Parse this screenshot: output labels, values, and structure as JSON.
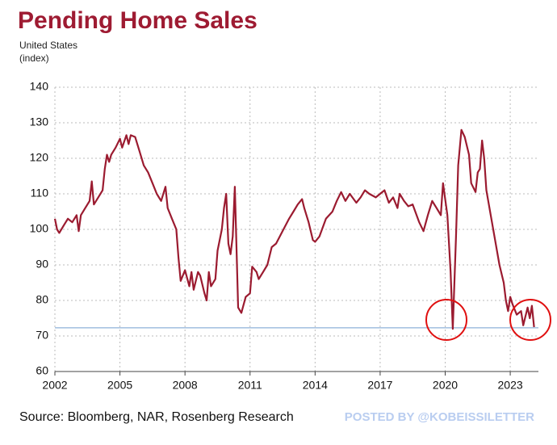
{
  "chart_data": {
    "type": "line",
    "title": "Pending Home Sales",
    "subtitle": "United States",
    "y_label": "(index)",
    "source": "Source: Bloomberg, NAR, Rosenberg Research",
    "watermark": "POSTED BY @KOBEISSILETTER",
    "xlim": [
      2002,
      2024.3
    ],
    "ylim": [
      60,
      140
    ],
    "xticks": [
      2002,
      2005,
      2008,
      2011,
      2014,
      2017,
      2020,
      2023
    ],
    "yticks": [
      60,
      70,
      80,
      90,
      100,
      110,
      120,
      130,
      140
    ],
    "grid": true,
    "reference_line": {
      "value": 72.3,
      "color": "#8eb0d8"
    },
    "series": [
      {
        "name": "Pending Home Sales",
        "color": "#9b1b30",
        "x": [
          2002.0,
          2002.1,
          2002.2,
          2002.4,
          2002.6,
          2002.8,
          2003.0,
          2003.1,
          2003.2,
          2003.4,
          2003.5,
          2003.6,
          2003.7,
          2003.8,
          2004.0,
          2004.2,
          2004.3,
          2004.4,
          2004.5,
          2004.6,
          2004.8,
          2005.0,
          2005.1,
          2005.3,
          2005.4,
          2005.5,
          2005.7,
          2005.9,
          2006.1,
          2006.3,
          2006.5,
          2006.7,
          2006.9,
          2007.1,
          2007.2,
          2007.4,
          2007.6,
          2007.7,
          2007.8,
          2008.0,
          2008.2,
          2008.3,
          2008.4,
          2008.6,
          2008.7,
          2008.9,
          2009.0,
          2009.1,
          2009.2,
          2009.4,
          2009.5,
          2009.7,
          2009.8,
          2009.9,
          2010.0,
          2010.1,
          2010.2,
          2010.3,
          2010.45,
          2010.6,
          2010.8,
          2011.0,
          2011.1,
          2011.3,
          2011.4,
          2011.6,
          2011.8,
          2012.0,
          2012.2,
          2012.5,
          2012.8,
          2013.0,
          2013.2,
          2013.4,
          2013.5,
          2013.7,
          2013.9,
          2014.0,
          2014.2,
          2014.5,
          2014.8,
          2015.0,
          2015.2,
          2015.4,
          2015.6,
          2015.9,
          2016.1,
          2016.3,
          2016.5,
          2016.8,
          2017.0,
          2017.2,
          2017.4,
          2017.6,
          2017.8,
          2017.9,
          2018.1,
          2018.3,
          2018.5,
          2018.8,
          2019.0,
          2019.2,
          2019.4,
          2019.6,
          2019.8,
          2019.9,
          2020.1,
          2020.25,
          2020.35,
          2020.5,
          2020.6,
          2020.75,
          2020.9,
          2021.1,
          2021.2,
          2021.4,
          2021.5,
          2021.6,
          2021.7,
          2021.8,
          2021.9,
          2022.1,
          2022.3,
          2022.5,
          2022.7,
          2022.8,
          2022.9,
          2023.0,
          2023.1,
          2023.3,
          2023.5,
          2023.6,
          2023.8,
          2023.9,
          2024.0,
          2024.1
        ],
        "values": [
          103,
          100,
          99,
          101,
          103,
          102,
          104,
          99.5,
          104,
          106,
          107,
          108,
          113.5,
          107,
          109,
          111,
          117,
          121,
          119,
          121,
          123,
          125.5,
          123,
          126.5,
          124,
          126.5,
          126,
          122,
          118,
          116,
          113,
          110,
          108,
          112,
          106,
          103,
          100,
          92,
          85.5,
          88.5,
          84,
          88,
          83,
          88,
          87,
          82,
          80,
          88,
          84,
          86,
          94,
          100,
          106,
          110,
          96,
          93,
          98,
          112,
          78,
          76.5,
          81,
          82,
          89.5,
          88,
          86,
          88,
          90,
          95,
          96,
          99.5,
          103,
          105,
          107,
          108.5,
          106,
          102,
          97,
          96.5,
          98,
          103,
          105,
          108,
          110.5,
          108,
          110,
          107.5,
          109,
          111,
          110,
          109,
          110,
          111,
          107.5,
          109,
          106,
          110,
          108,
          106.5,
          107,
          102,
          99.5,
          104,
          108,
          106,
          104,
          113,
          104,
          88,
          72,
          98,
          118,
          128,
          126,
          121,
          113,
          110.5,
          116,
          117,
          125,
          120,
          111,
          104,
          97,
          90,
          85,
          80,
          77,
          81,
          79,
          76,
          77,
          73,
          78,
          75,
          78.5,
          72.5
        ]
      }
    ]
  }
}
